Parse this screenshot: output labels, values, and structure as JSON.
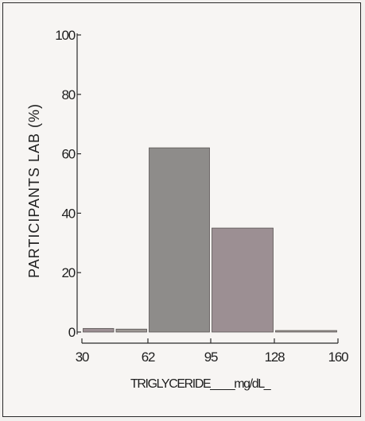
{
  "chart_data": {
    "type": "bar",
    "xlabel": "TRIGLYCERIDE____mg/dL_",
    "ylabel": "PARTICIPANTS LAB (%)",
    "x_ticks": [
      "30",
      "62",
      "95",
      "128",
      "160"
    ],
    "y_ticks": [
      "0",
      "20",
      "40",
      "60",
      "80",
      "100"
    ],
    "xlim": [
      30,
      160
    ],
    "ylim": [
      0,
      100
    ],
    "bins": [
      {
        "start": 30,
        "end": 46,
        "value": 1.2
      },
      {
        "start": 46,
        "end": 62,
        "value": 1.0
      },
      {
        "start": 62,
        "end": 95,
        "value": 62
      },
      {
        "start": 95,
        "end": 128,
        "value": 35
      },
      {
        "start": 128,
        "end": 160,
        "value": 0.5
      }
    ],
    "colors": {
      "bar_dark": "#8e8c8a",
      "bar_mid": "#9c9794",
      "bar_pinkish": "#9c8f93",
      "axis": "#2a2a2a"
    },
    "grid": false
  }
}
